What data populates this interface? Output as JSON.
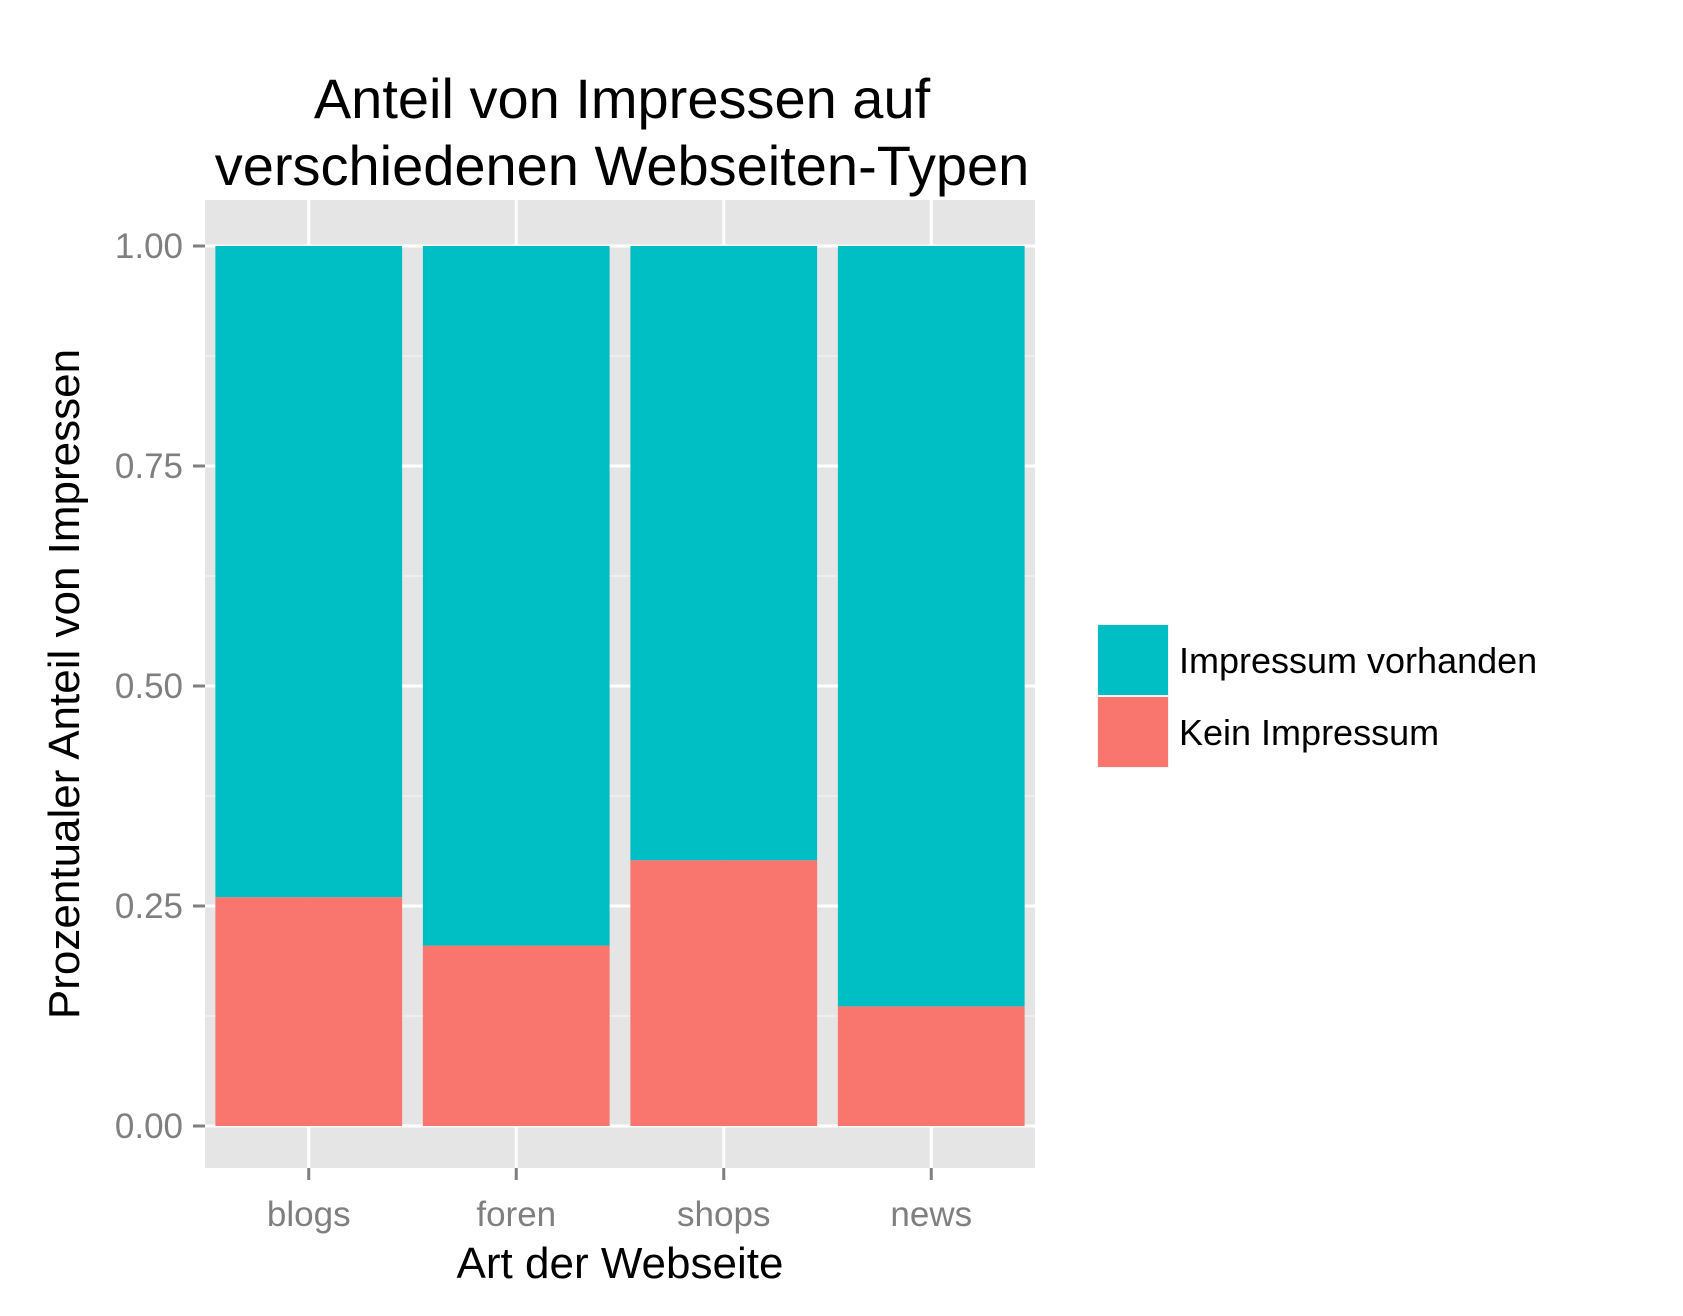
{
  "chart_data": {
    "type": "bar",
    "stacked": true,
    "title_lines": [
      "Anteil von Impressen auf",
      "verschiedenen Webseiten-Typen"
    ],
    "xlabel": "Art der Webseite",
    "ylabel": "Prozentualer Anteil von Impressen",
    "categories": [
      "blogs",
      "foren",
      "shops",
      "news"
    ],
    "series": [
      {
        "name": "Kein Impressum",
        "color": "#F8766D",
        "values": [
          0.26,
          0.205,
          0.302,
          0.136
        ]
      },
      {
        "name": "Impressum vorhanden",
        "color": "#00BFC4",
        "values": [
          0.74,
          0.795,
          0.698,
          0.864
        ]
      }
    ],
    "ylim": [
      0,
      1
    ],
    "yticks": [
      0,
      0.25,
      0.5,
      0.75,
      1
    ],
    "ytick_labels": [
      "0.00",
      "0.25",
      "0.50",
      "0.75",
      "1.00"
    ],
    "grid": true,
    "legend_position": "right",
    "legend_order": [
      "Impressum vorhanden",
      "Kein Impressum"
    ],
    "panel_background": "#E5E5E5"
  }
}
